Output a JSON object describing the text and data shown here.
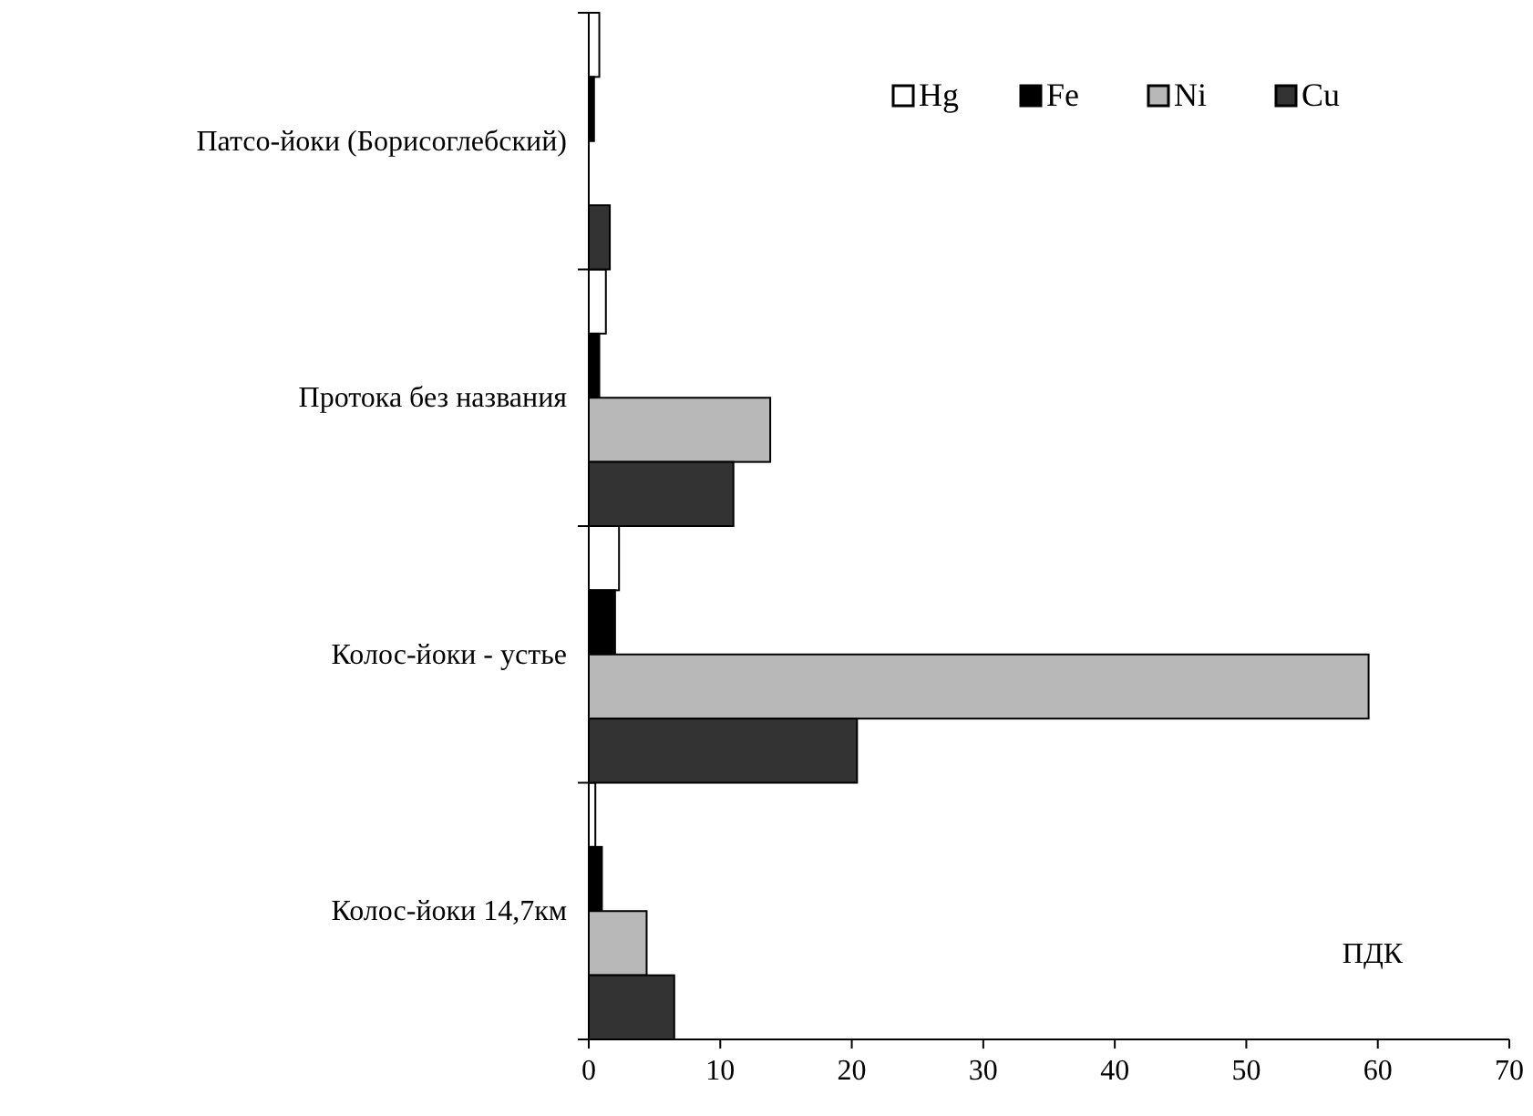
{
  "chart_data": {
    "type": "bar",
    "orientation": "horizontal",
    "xlabel": "ПДК",
    "categories": [
      "Патсо-йоки  (Борисоглебский)",
      "Протока без названия",
      "Колос-йоки - устье",
      "Колос-йоки 14,7км"
    ],
    "series": [
      {
        "name": "Hg",
        "color": "#ffffff",
        "values": [
          0.8,
          1.3,
          2.3,
          0.5
        ]
      },
      {
        "name": "Fe",
        "color": "#000000",
        "values": [
          0.4,
          0.8,
          2.0,
          1.0
        ]
      },
      {
        "name": "Ni",
        "color": "#b8b8b8",
        "values": [
          0,
          13.8,
          59.3,
          4.4
        ]
      },
      {
        "name": "Cu",
        "color": "#333333",
        "values": [
          1.6,
          11.0,
          20.4,
          6.5
        ]
      }
    ],
    "xlim": [
      0,
      70
    ],
    "xticks": [
      0,
      10,
      20,
      30,
      40,
      50,
      60,
      70
    ],
    "legend": "top right",
    "grid": false
  }
}
